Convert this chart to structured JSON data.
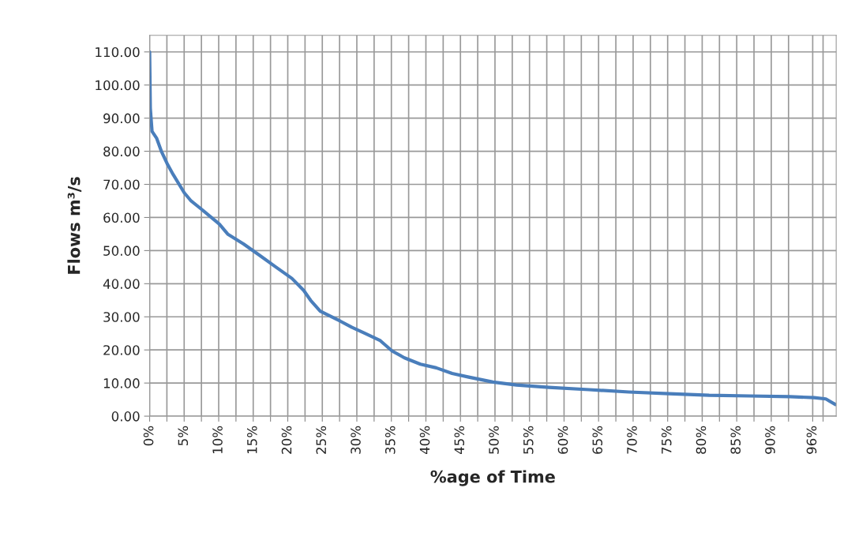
{
  "chart_data": {
    "type": "line",
    "xlabel": "%age of Time",
    "ylabel": "Flows m³/s",
    "series": [
      {
        "color": "#4a7ebb",
        "x": [
          0,
          0.1,
          0.35,
          1.0,
          1.7,
          2.6,
          3.4,
          5,
          6,
          7.8,
          10.1,
          11.3,
          13.6,
          15.9,
          18.3,
          20.6,
          22.3,
          23.3,
          24.7,
          27.6,
          29.3,
          31.1,
          33.4,
          35.1,
          36.9,
          39.2,
          41.5,
          43.8,
          46.2,
          49.7,
          53.1,
          57.8,
          63.6,
          69.4,
          75.2,
          81,
          86.9,
          92.7,
          96.2,
          97.9,
          99.3
        ],
        "values": [
          110,
          93,
          86,
          84,
          80,
          76,
          73,
          67.5,
          65,
          62,
          58,
          55,
          52,
          48.6,
          45,
          41.6,
          38,
          35,
          31.7,
          28.7,
          26.8,
          25.1,
          22.8,
          19.7,
          17.6,
          15.7,
          14.6,
          12.9,
          11.8,
          10.3,
          9.4,
          8.7,
          8.0,
          7.3,
          6.8,
          6.3,
          6.1,
          5.9,
          5.6,
          5.2,
          3.5
        ]
      }
    ],
    "xlim": [
      0,
      99.4
    ],
    "xticks": [
      {
        "value": 0,
        "label": "0%"
      },
      {
        "value": 2.5,
        "label": null
      },
      {
        "value": 5,
        "label": "5%"
      },
      {
        "value": 7.5,
        "label": null
      },
      {
        "value": 10,
        "label": "10%"
      },
      {
        "value": 12.5,
        "label": null
      },
      {
        "value": 15,
        "label": "15%"
      },
      {
        "value": 17.5,
        "label": null
      },
      {
        "value": 20,
        "label": "20%"
      },
      {
        "value": 22.5,
        "label": null
      },
      {
        "value": 25,
        "label": "25%"
      },
      {
        "value": 27.5,
        "label": null
      },
      {
        "value": 30,
        "label": "30%"
      },
      {
        "value": 32.5,
        "label": null
      },
      {
        "value": 35,
        "label": "35%"
      },
      {
        "value": 37.5,
        "label": null
      },
      {
        "value": 40,
        "label": "40%"
      },
      {
        "value": 42.5,
        "label": null
      },
      {
        "value": 45,
        "label": "45%"
      },
      {
        "value": 47.5,
        "label": null
      },
      {
        "value": 50,
        "label": "50%"
      },
      {
        "value": 52.5,
        "label": null
      },
      {
        "value": 55,
        "label": "55%"
      },
      {
        "value": 57.5,
        "label": null
      },
      {
        "value": 60,
        "label": "60%"
      },
      {
        "value": 62.5,
        "label": null
      },
      {
        "value": 65,
        "label": "65%"
      },
      {
        "value": 67.5,
        "label": null
      },
      {
        "value": 70,
        "label": "70%"
      },
      {
        "value": 72.5,
        "label": null
      },
      {
        "value": 75,
        "label": "75%"
      },
      {
        "value": 77.5,
        "label": null
      },
      {
        "value": 80,
        "label": "80%"
      },
      {
        "value": 82.5,
        "label": null
      },
      {
        "value": 85,
        "label": "85%"
      },
      {
        "value": 87.5,
        "label": null
      },
      {
        "value": 90,
        "label": "90%"
      },
      {
        "value": 92.5,
        "label": null
      },
      {
        "value": 96,
        "label": "96%"
      },
      {
        "value": 97.5,
        "label": null
      }
    ],
    "ylim": [
      0,
      115
    ],
    "yticks": [
      {
        "value": 0,
        "label": "0.00"
      },
      {
        "value": 10,
        "label": "10.00"
      },
      {
        "value": 20,
        "label": "20.00"
      },
      {
        "value": 30,
        "label": "30.00"
      },
      {
        "value": 40,
        "label": "40.00"
      },
      {
        "value": 50,
        "label": "50.00"
      },
      {
        "value": 60,
        "label": "60.00"
      },
      {
        "value": 70,
        "label": "70.00"
      },
      {
        "value": 80,
        "label": "80.00"
      },
      {
        "value": 90,
        "label": "90.00"
      },
      {
        "value": 100,
        "label": "100.00"
      },
      {
        "value": 110,
        "label": "110.00"
      }
    ],
    "grid": true,
    "legend": false,
    "marker": "none",
    "line_style": "solid"
  }
}
